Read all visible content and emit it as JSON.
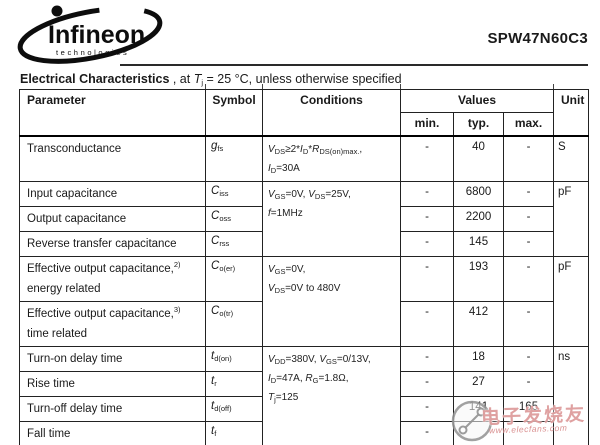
{
  "brand": {
    "logo_text": "Infineon",
    "logo_subtext": "technologies",
    "part_number": "SPW47N60C3"
  },
  "title": {
    "segments": [
      {
        "t": "Electrical Characteristics",
        "b": true
      },
      {
        "t": " , at "
      },
      {
        "t": "T",
        "it": true
      },
      {
        "t": "j",
        "sub": true
      },
      {
        "t": " = 25 °C, unless otherwise specified"
      }
    ]
  },
  "table": {
    "header": {
      "parameter": "Parameter",
      "symbol": "Symbol",
      "conditions": "Conditions",
      "values": "Values",
      "unit": "Unit",
      "min": "min.",
      "typ": "typ.",
      "max": "max."
    },
    "rows": [
      {
        "parameter": [
          [
            {
              "t": "Transconductance"
            }
          ]
        ],
        "symbol": [
          {
            "t": "g",
            "it": true
          },
          {
            "t": "fs",
            "sub": true
          }
        ],
        "conditions": {
          "span": 1,
          "lines": [
            [
              {
                "t": "V",
                "it": true
              },
              {
                "t": "DS",
                "sub": true
              },
              {
                "t": "≥2*"
              },
              {
                "t": "I",
                "it": true
              },
              {
                "t": "D",
                "sub": true
              },
              {
                "t": "*"
              },
              {
                "t": "R",
                "it": true
              },
              {
                "t": "DS(on)max.",
                "sub": true
              },
              {
                "t": ","
              }
            ],
            [
              {
                "t": "I",
                "it": true
              },
              {
                "t": "D",
                "sub": true
              },
              {
                "t": "=30A"
              }
            ]
          ]
        },
        "min": "-",
        "typ": "40",
        "max": "-",
        "unit": {
          "span": 1,
          "text": "S"
        }
      },
      {
        "parameter": [
          [
            {
              "t": "Input capacitance"
            }
          ]
        ],
        "symbol": [
          {
            "t": "C",
            "it": true
          },
          {
            "t": "iss",
            "sub": true
          }
        ],
        "conditions": {
          "span": 3,
          "lines": [
            [
              {
                "t": "V",
                "it": true
              },
              {
                "t": "GS",
                "sub": true
              },
              {
                "t": "=0V, "
              },
              {
                "t": "V",
                "it": true
              },
              {
                "t": "DS",
                "sub": true
              },
              {
                "t": "=25V,"
              }
            ],
            [
              {
                "t": "f",
                "it": true
              },
              {
                "t": "=1MHz"
              }
            ]
          ]
        },
        "min": "-",
        "typ": "6800",
        "max": "-",
        "unit": {
          "span": 3,
          "text": "pF"
        }
      },
      {
        "parameter": [
          [
            {
              "t": "Output capacitance"
            }
          ]
        ],
        "symbol": [
          {
            "t": "C",
            "it": true
          },
          {
            "t": "oss",
            "sub": true
          }
        ],
        "conditions": null,
        "min": "-",
        "typ": "2200",
        "max": "-",
        "unit": null
      },
      {
        "parameter": [
          [
            {
              "t": "Reverse transfer capacitance"
            }
          ]
        ],
        "symbol": [
          {
            "t": "C",
            "it": true
          },
          {
            "t": "rss",
            "sub": true
          }
        ],
        "conditions": null,
        "min": "-",
        "typ": "145",
        "max": "-",
        "unit": null
      },
      {
        "parameter": [
          [
            {
              "t": "Effective output capacitance,"
            },
            {
              "t": "2)",
              "sup": true
            }
          ],
          [
            {
              "t": "energy related"
            }
          ]
        ],
        "symbol": [
          {
            "t": "C",
            "it": true
          },
          {
            "t": "o(er)",
            "sub": true
          }
        ],
        "conditions": {
          "span": 2,
          "lines": [
            [
              {
                "t": "V",
                "it": true
              },
              {
                "t": "GS",
                "sub": true
              },
              {
                "t": "=0V,"
              }
            ],
            [
              {
                "t": "V",
                "it": true
              },
              {
                "t": "DS",
                "sub": true
              },
              {
                "t": "=0V to 480V"
              }
            ]
          ]
        },
        "min": "-",
        "typ": "193",
        "max": "-",
        "unit": {
          "span": 2,
          "text": "pF"
        }
      },
      {
        "parameter": [
          [
            {
              "t": "Effective output capacitance,"
            },
            {
              "t": "3)",
              "sup": true
            }
          ],
          [
            {
              "t": "time related"
            }
          ]
        ],
        "symbol": [
          {
            "t": "C",
            "it": true
          },
          {
            "t": "o(tr)",
            "sub": true
          }
        ],
        "conditions": null,
        "min": "-",
        "typ": "412",
        "max": "-",
        "unit": null
      },
      {
        "parameter": [
          [
            {
              "t": "Turn-on delay time"
            }
          ]
        ],
        "symbol": [
          {
            "t": "t",
            "it": true
          },
          {
            "t": "d(on)",
            "sub": true
          }
        ],
        "conditions": {
          "span": 4,
          "lines": [
            [
              {
                "t": "V",
                "it": true
              },
              {
                "t": "DD",
                "sub": true
              },
              {
                "t": "=380V, "
              },
              {
                "t": "V",
                "it": true
              },
              {
                "t": "GS",
                "sub": true
              },
              {
                "t": "=0/13V,"
              }
            ],
            [
              {
                "t": "I",
                "it": true
              },
              {
                "t": "D",
                "sub": true
              },
              {
                "t": "=47A, "
              },
              {
                "t": "R",
                "it": true
              },
              {
                "t": "G",
                "sub": true
              },
              {
                "t": "=1.8Ω,"
              }
            ],
            [
              {
                "t": "T",
                "it": true
              },
              {
                "t": "j",
                "sub": true
              },
              {
                "t": "=125"
              }
            ]
          ]
        },
        "min": "-",
        "typ": "18",
        "max": "-",
        "unit": {
          "span": 4,
          "text": "ns"
        }
      },
      {
        "parameter": [
          [
            {
              "t": "Rise time"
            }
          ]
        ],
        "symbol": [
          {
            "t": "t",
            "it": true
          },
          {
            "t": "r",
            "sub": true
          }
        ],
        "conditions": null,
        "min": "-",
        "typ": "27",
        "max": "-",
        "unit": null
      },
      {
        "parameter": [
          [
            {
              "t": "Turn-off delay time"
            }
          ]
        ],
        "symbol": [
          {
            "t": "t",
            "it": true
          },
          {
            "t": "d(off)",
            "sub": true
          }
        ],
        "conditions": null,
        "min": "-",
        "typ": "141",
        "max": "165",
        "unit": null
      },
      {
        "parameter": [
          [
            {
              "t": "Fall time"
            }
          ]
        ],
        "symbol": [
          {
            "t": "t",
            "it": true
          },
          {
            "t": "f",
            "sub": true
          }
        ],
        "conditions": null,
        "min": "-",
        "typ": "",
        "max": "",
        "unit": null
      }
    ]
  },
  "watermark": {
    "text": "电子发烧友",
    "url": "www.elecfans.com"
  },
  "colors": {
    "border": "#222222",
    "text": "#1a1a1a",
    "watermark_red": "#c55454"
  }
}
